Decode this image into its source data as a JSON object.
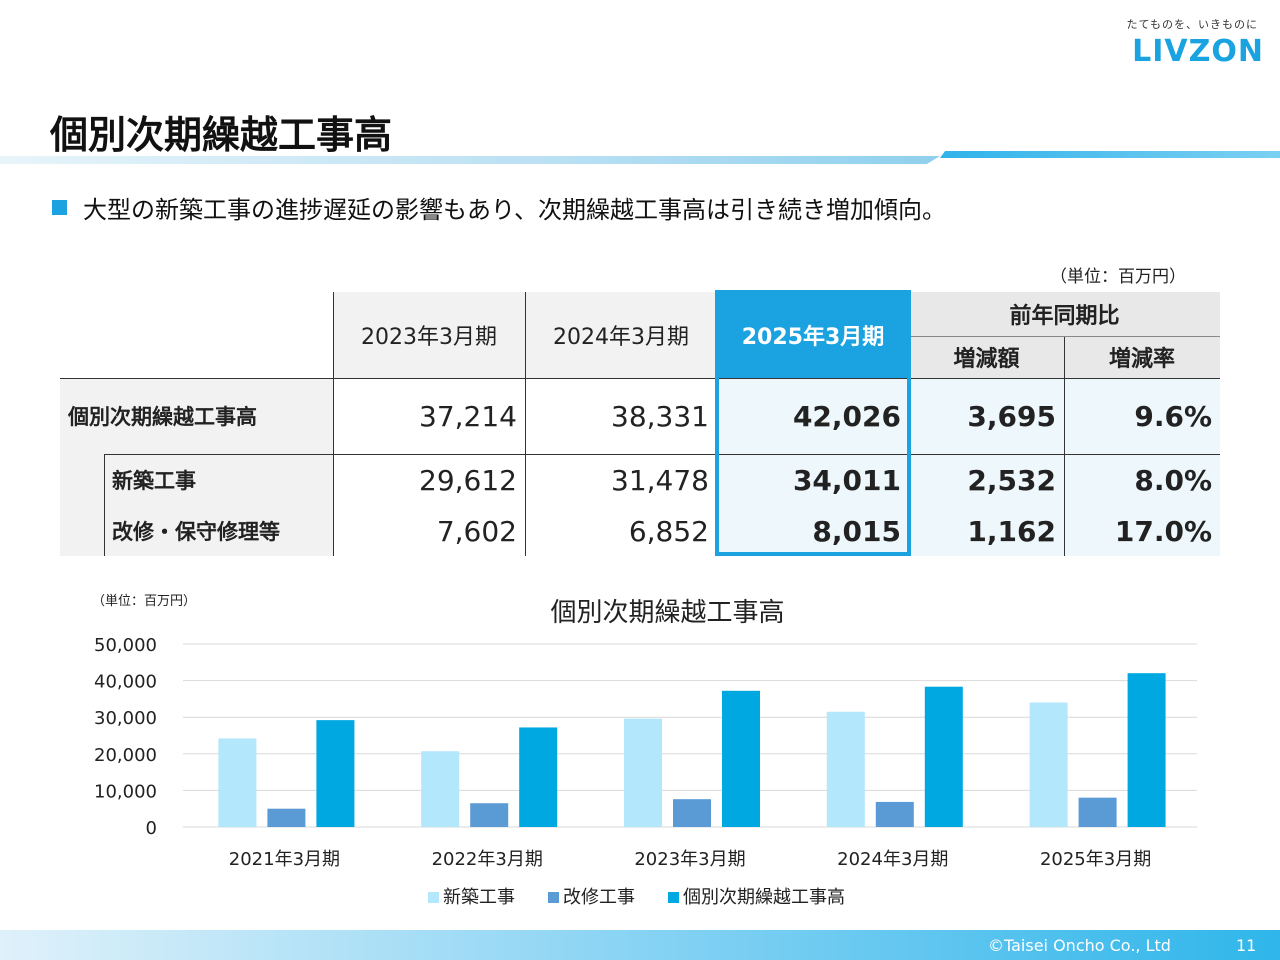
{
  "logo": {
    "tagline": "たてものを、いきものに",
    "name": "LIVZON"
  },
  "title": "個別次期繰越工事高",
  "bullet": "大型の新築工事の進捗遅延の影響もあり、次期繰越工事高は引き続き増加傾向。",
  "table": {
    "unit": "（単位：百万円）",
    "headers": [
      "2023年3月期",
      "2024年3月期",
      "2025年3月期"
    ],
    "yoy_header": "前年同期比",
    "yoy_sub": [
      "増減額",
      "増減率"
    ],
    "rows": [
      {
        "label": "個別次期繰越工事高",
        "v2023": "37,214",
        "v2024": "38,331",
        "v2025": "42,026",
        "diff": "3,695",
        "rate": "9.6%"
      },
      {
        "label": "新築工事",
        "v2023": "29,612",
        "v2024": "31,478",
        "v2025": "34,011",
        "diff": "2,532",
        "rate": "8.0%"
      },
      {
        "label": "改修・保守修理等",
        "v2023": "7,602",
        "v2024": "6,852",
        "v2025": "8,015",
        "diff": "1,162",
        "rate": "17.0%"
      }
    ]
  },
  "chart_unit": "（単位：百万円）",
  "chart_data": {
    "type": "bar",
    "title": "個別次期繰越工事高",
    "categories": [
      "2021年3月期",
      "2022年3月期",
      "2023年3月期",
      "2024年3月期",
      "2025年3月期"
    ],
    "series": [
      {
        "name": "新築工事",
        "color": "#b3e7fb",
        "values": [
          24200,
          20700,
          29612,
          31478,
          34011
        ]
      },
      {
        "name": "改修工事",
        "color": "#5b9bd5",
        "values": [
          5000,
          6500,
          7602,
          6852,
          8015
        ]
      },
      {
        "name": "個別次期繰越工事高",
        "color": "#00a8e1",
        "values": [
          29200,
          27200,
          37214,
          38331,
          42026
        ]
      }
    ],
    "ylim": [
      0,
      50000
    ],
    "yticks": [
      "0",
      "10,000",
      "20,000",
      "30,000",
      "40,000",
      "50,000"
    ],
    "grid": true,
    "legend": "bottom"
  },
  "footer": {
    "copyright": "©Taisei Oncho Co., Ltd",
    "page": "11"
  }
}
